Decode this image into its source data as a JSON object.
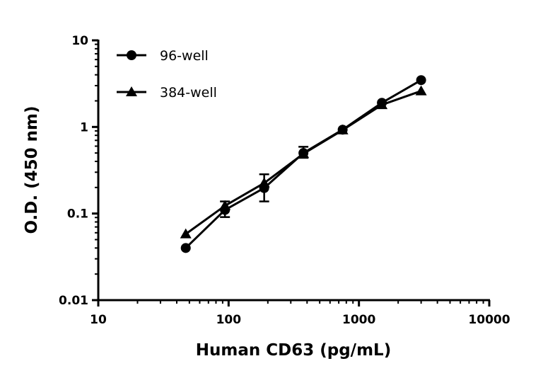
{
  "chart_data": {
    "type": "line",
    "title": "",
    "xlabel": "Human CD63 (pg/mL)",
    "ylabel": "O.D. (450 nm)",
    "xscale": "log",
    "yscale": "log",
    "xlim": [
      10,
      10000
    ],
    "ylim": [
      0.01,
      10
    ],
    "xticks": [
      "10",
      "100",
      "1000",
      "10000"
    ],
    "yticks": [
      "0.01",
      "0.1",
      "1",
      "10"
    ],
    "grid": false,
    "legend_position": "top-left",
    "series": [
      {
        "name": "96-well",
        "marker": "circle",
        "color": "#000000",
        "x": [
          46.9,
          93.75,
          187.5,
          375,
          750,
          1500,
          3000
        ],
        "y": [
          0.04,
          0.11,
          0.197,
          0.5,
          0.93,
          1.9,
          3.47
        ],
        "error": [
          null,
          [
            0.091,
            0.138
          ],
          [
            0.138,
            0.284
          ],
          [
            0.44,
            0.59
          ],
          null,
          null,
          null
        ]
      },
      {
        "name": "384-well",
        "marker": "triangle",
        "color": "#000000",
        "x": [
          46.9,
          93.75,
          187.5,
          375,
          750,
          1500,
          3000
        ],
        "y": [
          0.058,
          0.123,
          0.225,
          0.49,
          0.92,
          1.8,
          2.6
        ]
      }
    ]
  }
}
